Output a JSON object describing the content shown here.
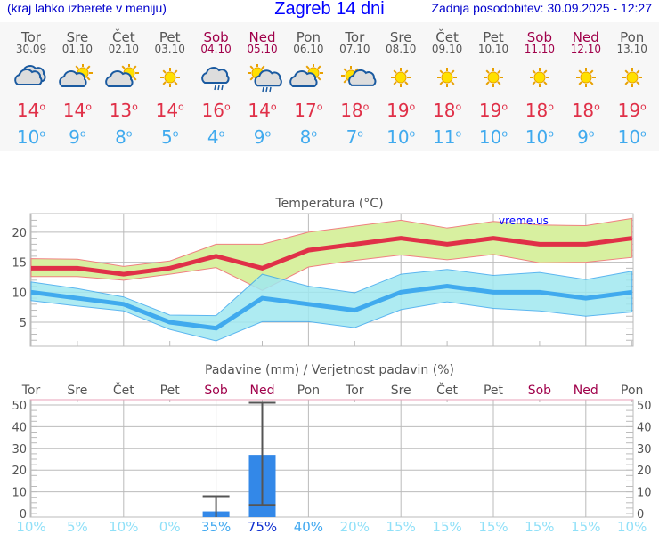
{
  "header": {
    "subtitle": "(kraj lahko izberete v meniju)",
    "title": "Zagreb 14 dni",
    "updated": "Zadnja posodobitev: 30.09.2025 - 12:27"
  },
  "days": [
    {
      "name": "Tor",
      "date": "30.09",
      "weekend": false,
      "icon": "cloudy-icon",
      "max": "14",
      "min": "10",
      "prob": "10%"
    },
    {
      "name": "Sre",
      "date": "01.10",
      "weekend": false,
      "icon": "partly-cloudy-icon",
      "max": "14",
      "min": "9",
      "prob": "5%"
    },
    {
      "name": "Čet",
      "date": "02.10",
      "weekend": false,
      "icon": "partly-cloudy-icon",
      "max": "13",
      "min": "8",
      "prob": "10%"
    },
    {
      "name": "Pet",
      "date": "03.10",
      "weekend": false,
      "icon": "sun-icon",
      "max": "14",
      "min": "5",
      "prob": "0%"
    },
    {
      "name": "Sob",
      "date": "04.10",
      "weekend": true,
      "icon": "rain-cloud-icon",
      "max": "16",
      "min": "4",
      "prob": "35%"
    },
    {
      "name": "Ned",
      "date": "05.10",
      "weekend": true,
      "icon": "sun-rain-icon",
      "max": "14",
      "min": "9",
      "prob": "75%"
    },
    {
      "name": "Pon",
      "date": "06.10",
      "weekend": false,
      "icon": "partly-cloudy-icon",
      "max": "17",
      "min": "8",
      "prob": "40%"
    },
    {
      "name": "Tor",
      "date": "07.10",
      "weekend": false,
      "icon": "sun-small-cloud-icon",
      "max": "18",
      "min": "7",
      "prob": "20%"
    },
    {
      "name": "Sre",
      "date": "08.10",
      "weekend": false,
      "icon": "sun-icon",
      "max": "19",
      "min": "10",
      "prob": "15%"
    },
    {
      "name": "Čet",
      "date": "09.10",
      "weekend": false,
      "icon": "sun-icon",
      "max": "18",
      "min": "11",
      "prob": "15%"
    },
    {
      "name": "Pet",
      "date": "10.10",
      "weekend": false,
      "icon": "sun-icon",
      "max": "19",
      "min": "10",
      "prob": "15%"
    },
    {
      "name": "Sob",
      "date": "11.10",
      "weekend": true,
      "icon": "sun-icon",
      "max": "18",
      "min": "10",
      "prob": "15%"
    },
    {
      "name": "Ned",
      "date": "12.10",
      "weekend": true,
      "icon": "sun-icon",
      "max": "18",
      "min": "9",
      "prob": "15%"
    },
    {
      "name": "Pon",
      "date": "13.10",
      "weekend": false,
      "icon": "sun-icon",
      "max": "19",
      "min": "10",
      "prob": "10%"
    }
  ],
  "degree": "o",
  "colors": {
    "max": "#e03048",
    "min": "#40aaee",
    "max_band": "#d8f0a0",
    "min_band": "#a0e8f0",
    "bar": "#3388e8",
    "weekend": "#a0004a"
  },
  "chart_data": [
    {
      "type": "line",
      "title": "Temperatura (°C)",
      "watermark": "vreme.us",
      "ylim": [
        1,
        23.1
      ],
      "yticks": [
        5,
        10,
        15,
        20
      ],
      "grid": true,
      "series": [
        {
          "values": [
            14,
            14,
            13,
            14,
            16,
            14,
            17,
            18,
            19,
            18,
            19,
            18,
            18,
            19
          ]
        },
        {
          "values": [
            10,
            9,
            8,
            5,
            4,
            9,
            8,
            7,
            10,
            11,
            10,
            10,
            9,
            10
          ]
        }
      ],
      "max_band_upper": [
        15.6,
        15.5,
        14.3,
        15.2,
        18,
        18,
        20,
        21,
        22,
        20.7,
        21.8,
        21.2,
        21.1,
        22.3
      ],
      "max_band_lower": [
        12.6,
        12.6,
        12,
        13,
        14.1,
        10.3,
        14.2,
        15.3,
        16.2,
        15.4,
        16.3,
        14.9,
        15,
        15.8
      ],
      "min_band_upper": [
        11.7,
        10.6,
        9.2,
        6.2,
        6.1,
        13,
        11,
        9.9,
        13,
        13.8,
        12.8,
        13.3,
        12.1,
        13.5
      ],
      "min_band_lower": [
        8.6,
        7.7,
        6.9,
        3.8,
        1.9,
        5.1,
        5.1,
        4.1,
        7.1,
        8.4,
        7.3,
        6.9,
        6,
        6.7
      ]
    },
    {
      "type": "bar",
      "title": "Padavine (mm) / Verjetnost padavin (%)",
      "ylim": [
        0,
        52
      ],
      "yticks": [
        0,
        10,
        20,
        30,
        40,
        50
      ],
      "grid": true,
      "values": [
        0,
        0,
        0,
        0,
        1,
        27,
        0,
        0,
        0,
        0,
        0,
        0,
        0,
        0
      ],
      "err_low": [
        null,
        null,
        null,
        null,
        0,
        4,
        null,
        null,
        null,
        null,
        null,
        null,
        null,
        null
      ],
      "err_high": [
        null,
        null,
        null,
        null,
        8,
        51,
        null,
        null,
        null,
        null,
        null,
        null,
        null,
        null
      ]
    }
  ]
}
